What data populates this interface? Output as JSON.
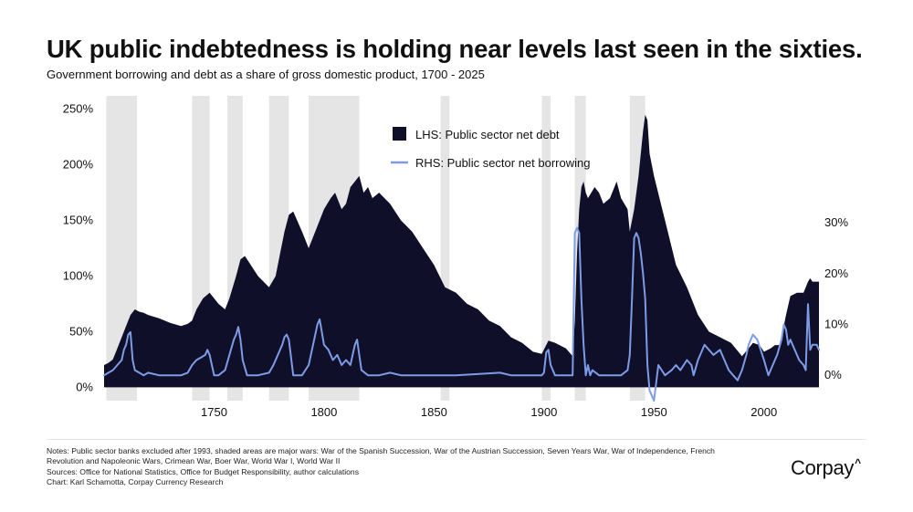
{
  "title": "UK public indebtedness is holding near levels last seen in the sixties.",
  "subtitle": "Government borrowing and debt as a share of gross domestic product, 1700 - 2025",
  "brand": {
    "name": "Corpay",
    "mark": "^"
  },
  "notes": [
    "Notes: Public sector banks excluded after 1993, shaded areas are major wars: War of the Spanish Succession, War of the Austrian Succession, Seven Years War, War of Independence, French",
    "Revolution and Napoleonic Wars, Crimean War, Boer War, World War I, World War II",
    "Sources: Office for National Statistics, Office for Budget Responsibility, author calculations",
    "Chart: Karl Schamotta, Corpay Currency Research"
  ],
  "colors": {
    "debt": "#0f0f2a",
    "borrowing": "#7e9be6",
    "war": "#e5e5e5"
  },
  "chart_data": {
    "type": "area",
    "title": "UK public indebtedness is holding near levels last seen in the sixties.",
    "xlim": [
      1700,
      2025
    ],
    "xticks": [
      1750,
      1800,
      1850,
      1900,
      1950,
      2000
    ],
    "ylim_left": [
      -12,
      262
    ],
    "yticks_left": [
      0,
      50,
      100,
      150,
      200,
      250
    ],
    "ytick_labels_left": [
      "0%",
      "50%",
      "100%",
      "150%",
      "200%",
      "250%"
    ],
    "ylim_right": [
      -5,
      55
    ],
    "yticks_right": [
      0,
      10,
      20,
      30
    ],
    "ytick_labels_right": [
      "0%",
      "10%",
      "20%",
      "30%"
    ],
    "legend_position": "top-center",
    "war_periods": [
      {
        "name": "War of the Spanish Succession",
        "start": 1701,
        "end": 1715
      },
      {
        "name": "War of the Austrian Succession",
        "start": 1740,
        "end": 1748
      },
      {
        "name": "Seven Years War",
        "start": 1756,
        "end": 1763
      },
      {
        "name": "War of Independence",
        "start": 1775,
        "end": 1784
      },
      {
        "name": "French Revolution and Napoleonic Wars",
        "start": 1793,
        "end": 1816
      },
      {
        "name": "Crimean War",
        "start": 1853,
        "end": 1857
      },
      {
        "name": "Boer War",
        "start": 1899,
        "end": 1903
      },
      {
        "name": "World War I",
        "start": 1914,
        "end": 1919
      },
      {
        "name": "World War II",
        "start": 1939,
        "end": 1946
      }
    ],
    "series": [
      {
        "name": "LHS: Public sector net debt",
        "axis": "left",
        "kind": "area",
        "x": [
          1700,
          1702,
          1704,
          1706,
          1708,
          1710,
          1712,
          1714,
          1716,
          1718,
          1720,
          1725,
          1730,
          1735,
          1738,
          1740,
          1742,
          1745,
          1748,
          1750,
          1752,
          1755,
          1757,
          1760,
          1762,
          1764,
          1766,
          1770,
          1775,
          1778,
          1780,
          1782,
          1784,
          1786,
          1790,
          1793,
          1795,
          1797,
          1800,
          1803,
          1805,
          1808,
          1810,
          1812,
          1814,
          1816,
          1818,
          1820,
          1822,
          1825,
          1830,
          1835,
          1840,
          1845,
          1850,
          1855,
          1860,
          1865,
          1870,
          1875,
          1880,
          1885,
          1890,
          1895,
          1899,
          1902,
          1905,
          1910,
          1913,
          1914,
          1915,
          1916,
          1917,
          1918,
          1919,
          1920,
          1923,
          1925,
          1927,
          1930,
          1933,
          1935,
          1938,
          1939,
          1941,
          1943,
          1945,
          1946,
          1947,
          1948,
          1950,
          1955,
          1960,
          1965,
          1970,
          1975,
          1980,
          1985,
          1990,
          1993,
          1995,
          1998,
          2000,
          2003,
          2005,
          2007,
          2009,
          2010,
          2012,
          2015,
          2018,
          2020,
          2021,
          2022,
          2025
        ],
        "values": [
          20,
          22,
          25,
          35,
          45,
          55,
          65,
          70,
          68,
          67,
          65,
          62,
          58,
          55,
          57,
          60,
          70,
          80,
          85,
          80,
          75,
          70,
          80,
          100,
          115,
          118,
          112,
          100,
          90,
          100,
          120,
          140,
          155,
          158,
          140,
          125,
          135,
          145,
          160,
          170,
          175,
          160,
          165,
          180,
          185,
          190,
          175,
          180,
          170,
          175,
          165,
          150,
          140,
          125,
          110,
          90,
          85,
          75,
          70,
          60,
          55,
          45,
          40,
          32,
          30,
          42,
          40,
          35,
          28,
          60,
          120,
          160,
          180,
          185,
          175,
          170,
          180,
          175,
          165,
          170,
          185,
          170,
          160,
          140,
          160,
          190,
          230,
          245,
          240,
          210,
          190,
          150,
          110,
          90,
          65,
          50,
          45,
          40,
          28,
          35,
          40,
          38,
          32,
          35,
          38,
          38,
          55,
          65,
          82,
          85,
          85,
          95,
          98,
          95,
          95
        ]
      },
      {
        "name": "RHS: Public sector net borrowing",
        "axis": "right",
        "kind": "line",
        "x": [
          1700,
          1702,
          1704,
          1706,
          1708,
          1709,
          1710,
          1711,
          1712,
          1713,
          1714,
          1716,
          1718,
          1720,
          1725,
          1730,
          1735,
          1738,
          1740,
          1742,
          1744,
          1746,
          1747,
          1748,
          1750,
          1752,
          1755,
          1757,
          1759,
          1760,
          1761,
          1762,
          1763,
          1765,
          1770,
          1775,
          1777,
          1779,
          1781,
          1782,
          1783,
          1784,
          1786,
          1790,
          1793,
          1795,
          1797,
          1798,
          1800,
          1802,
          1804,
          1806,
          1808,
          1810,
          1812,
          1813,
          1814,
          1815,
          1817,
          1820,
          1825,
          1830,
          1835,
          1840,
          1855,
          1860,
          1880,
          1885,
          1890,
          1895,
          1899,
          1900,
          1901,
          1902,
          1903,
          1905,
          1910,
          1913,
          1914,
          1915,
          1916,
          1917,
          1918,
          1919,
          1920,
          1921,
          1922,
          1925,
          1930,
          1935,
          1938,
          1939,
          1940,
          1941,
          1942,
          1943,
          1944,
          1945,
          1946,
          1947,
          1948,
          1950,
          1952,
          1955,
          1958,
          1960,
          1962,
          1965,
          1967,
          1968,
          1970,
          1973,
          1975,
          1977,
          1980,
          1982,
          1984,
          1986,
          1988,
          1990,
          1992,
          1993,
          1995,
          1997,
          2000,
          2002,
          2004,
          2006,
          2008,
          2009,
          2010,
          2011,
          2012,
          2014,
          2016,
          2018,
          2019,
          2020,
          2021,
          2022,
          2024,
          2025
        ],
        "values": [
          0,
          0.5,
          1,
          2,
          3,
          5,
          6,
          8,
          8.5,
          3,
          1,
          0.5,
          0,
          0.5,
          0,
          0,
          0,
          0.5,
          2,
          3,
          3.5,
          4,
          5,
          4,
          0,
          0,
          1,
          4,
          7,
          8,
          9.5,
          7,
          3,
          0,
          0,
          0.5,
          2,
          4,
          6,
          7.5,
          8,
          7,
          0,
          0,
          2,
          6,
          10,
          11,
          6,
          5,
          3,
          4,
          2,
          3,
          2,
          4,
          6,
          7,
          1,
          0,
          0,
          0.5,
          0,
          0,
          0,
          0,
          0.5,
          0,
          0,
          0,
          0,
          0.5,
          4.5,
          5,
          2,
          0,
          0,
          0,
          28,
          29,
          28,
          15,
          6,
          0,
          2,
          0,
          1,
          0,
          0,
          0,
          1,
          4,
          15,
          27,
          28,
          27,
          24,
          20,
          15,
          2,
          -3,
          -5,
          2,
          0,
          1,
          2,
          1,
          3,
          2,
          0,
          3,
          6,
          5,
          4,
          5,
          3,
          1,
          0,
          -1,
          1,
          4,
          6,
          8,
          7,
          3,
          0,
          2,
          4,
          7,
          10,
          9,
          6,
          7,
          5,
          3,
          2,
          1,
          14,
          5,
          6,
          6,
          5
        ]
      }
    ],
    "xlabel": "",
    "ylabel": ""
  }
}
